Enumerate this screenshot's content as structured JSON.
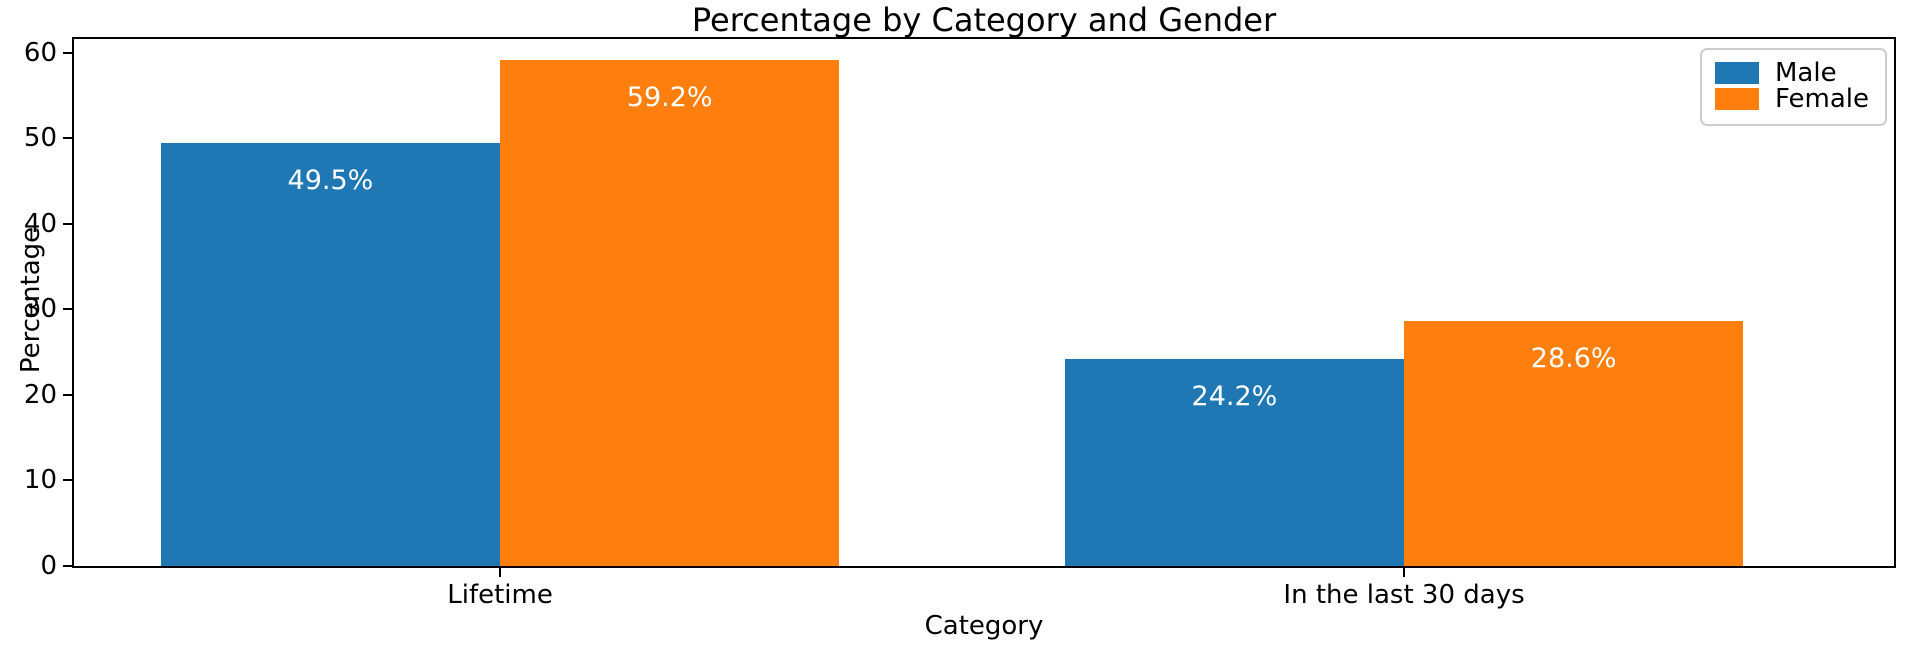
{
  "chart_data": {
    "type": "bar",
    "title": "Percentage by Category and Gender",
    "xlabel": "Category",
    "ylabel": "Percentage",
    "categories": [
      "Lifetime",
      "In the last 30 days"
    ],
    "series": [
      {
        "name": "Male",
        "color": "#1f77b4",
        "values": [
          49.5,
          24.2
        ],
        "bar_labels": [
          "49.5%",
          "24.2%"
        ]
      },
      {
        "name": "Female",
        "color": "#ff7f0e",
        "values": [
          59.2,
          28.6
        ],
        "bar_labels": [
          "59.2%",
          "28.6%"
        ]
      }
    ],
    "yticks": [
      0,
      10,
      20,
      30,
      40,
      50,
      60
    ],
    "ylim": [
      0,
      61.6
    ],
    "legend_position": "upper right",
    "grid": false,
    "bar_label_color": "#ffffff",
    "axis_color": "#000000",
    "background_color": "#ffffff"
  }
}
